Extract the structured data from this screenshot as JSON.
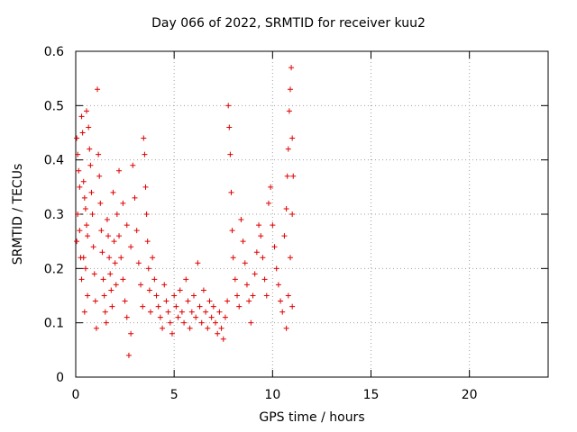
{
  "chart_data": {
    "type": "scatter",
    "title": "Day 066 of 2022, SRMTID for receiver kuu2",
    "xlabel": "GPS time / hours",
    "ylabel": "SRMTID / TECUs",
    "xlim": [
      0,
      24
    ],
    "ylim": [
      0,
      0.6
    ],
    "x_ticks": [
      0,
      5,
      10,
      15,
      20
    ],
    "y_ticks": [
      0,
      0.1,
      0.2,
      0.3,
      0.4,
      0.5,
      0.6
    ],
    "x_tick_labels": [
      "0",
      "5",
      "10",
      "15",
      "20"
    ],
    "y_tick_labels": [
      "0",
      "0.1",
      "0.2",
      "0.3",
      "0.4",
      "0.5",
      "0.6"
    ],
    "grid": true,
    "marker": "+",
    "color": "#e00000",
    "series": [
      {
        "name": "SRMTID",
        "points": [
          [
            0.05,
            0.44
          ],
          [
            0.1,
            0.41
          ],
          [
            0.15,
            0.38
          ],
          [
            0.2,
            0.35
          ],
          [
            0.1,
            0.3
          ],
          [
            0.2,
            0.27
          ],
          [
            0.05,
            0.25
          ],
          [
            0.25,
            0.22
          ],
          [
            0.3,
            0.48
          ],
          [
            0.35,
            0.45
          ],
          [
            0.4,
            0.36
          ],
          [
            0.45,
            0.33
          ],
          [
            0.5,
            0.31
          ],
          [
            0.55,
            0.28
          ],
          [
            0.6,
            0.26
          ],
          [
            0.4,
            0.22
          ],
          [
            0.5,
            0.2
          ],
          [
            0.3,
            0.18
          ],
          [
            0.6,
            0.15
          ],
          [
            0.45,
            0.12
          ],
          [
            0.55,
            0.49
          ],
          [
            0.65,
            0.46
          ],
          [
            0.7,
            0.42
          ],
          [
            0.75,
            0.39
          ],
          [
            0.8,
            0.34
          ],
          [
            0.85,
            0.3
          ],
          [
            0.9,
            0.24
          ],
          [
            0.95,
            0.19
          ],
          [
            1.0,
            0.14
          ],
          [
            1.05,
            0.09
          ],
          [
            1.1,
            0.53
          ],
          [
            1.15,
            0.41
          ],
          [
            1.2,
            0.37
          ],
          [
            1.25,
            0.32
          ],
          [
            1.3,
            0.27
          ],
          [
            1.35,
            0.23
          ],
          [
            1.4,
            0.18
          ],
          [
            1.45,
            0.15
          ],
          [
            1.5,
            0.12
          ],
          [
            1.55,
            0.1
          ],
          [
            1.6,
            0.29
          ],
          [
            1.65,
            0.26
          ],
          [
            1.7,
            0.22
          ],
          [
            1.75,
            0.19
          ],
          [
            1.8,
            0.16
          ],
          [
            1.85,
            0.13
          ],
          [
            1.9,
            0.34
          ],
          [
            1.95,
            0.25
          ],
          [
            2.0,
            0.21
          ],
          [
            2.05,
            0.17
          ],
          [
            2.1,
            0.3
          ],
          [
            2.2,
            0.26
          ],
          [
            2.3,
            0.22
          ],
          [
            2.4,
            0.18
          ],
          [
            2.5,
            0.14
          ],
          [
            2.6,
            0.11
          ],
          [
            2.2,
            0.38
          ],
          [
            2.4,
            0.32
          ],
          [
            2.6,
            0.28
          ],
          [
            2.8,
            0.24
          ],
          [
            2.7,
            0.04
          ],
          [
            2.8,
            0.08
          ],
          [
            2.9,
            0.39
          ],
          [
            3.0,
            0.33
          ],
          [
            3.1,
            0.27
          ],
          [
            3.2,
            0.21
          ],
          [
            3.3,
            0.17
          ],
          [
            3.4,
            0.13
          ],
          [
            3.45,
            0.44
          ],
          [
            3.5,
            0.41
          ],
          [
            3.55,
            0.35
          ],
          [
            3.6,
            0.3
          ],
          [
            3.65,
            0.25
          ],
          [
            3.7,
            0.2
          ],
          [
            3.75,
            0.16
          ],
          [
            3.8,
            0.12
          ],
          [
            3.9,
            0.22
          ],
          [
            4.0,
            0.18
          ],
          [
            4.1,
            0.15
          ],
          [
            4.2,
            0.13
          ],
          [
            4.3,
            0.11
          ],
          [
            4.4,
            0.09
          ],
          [
            4.5,
            0.17
          ],
          [
            4.6,
            0.14
          ],
          [
            4.7,
            0.12
          ],
          [
            4.8,
            0.1
          ],
          [
            4.9,
            0.08
          ],
          [
            5.0,
            0.15
          ],
          [
            5.1,
            0.13
          ],
          [
            5.2,
            0.11
          ],
          [
            5.3,
            0.16
          ],
          [
            5.4,
            0.12
          ],
          [
            5.5,
            0.1
          ],
          [
            5.6,
            0.18
          ],
          [
            5.7,
            0.14
          ],
          [
            5.8,
            0.09
          ],
          [
            5.9,
            0.12
          ],
          [
            6.0,
            0.15
          ],
          [
            6.1,
            0.11
          ],
          [
            6.2,
            0.21
          ],
          [
            6.3,
            0.13
          ],
          [
            6.4,
            0.1
          ],
          [
            6.5,
            0.16
          ],
          [
            6.6,
            0.12
          ],
          [
            6.7,
            0.09
          ],
          [
            6.8,
            0.14
          ],
          [
            6.9,
            0.11
          ],
          [
            7.0,
            0.13
          ],
          [
            7.1,
            0.1
          ],
          [
            7.2,
            0.08
          ],
          [
            7.3,
            0.12
          ],
          [
            7.4,
            0.09
          ],
          [
            7.5,
            0.07
          ],
          [
            7.6,
            0.11
          ],
          [
            7.7,
            0.14
          ],
          [
            7.75,
            0.5
          ],
          [
            7.8,
            0.46
          ],
          [
            7.85,
            0.41
          ],
          [
            7.9,
            0.34
          ],
          [
            7.95,
            0.27
          ],
          [
            8.0,
            0.22
          ],
          [
            8.1,
            0.18
          ],
          [
            8.2,
            0.15
          ],
          [
            8.3,
            0.13
          ],
          [
            8.4,
            0.29
          ],
          [
            8.5,
            0.25
          ],
          [
            8.6,
            0.21
          ],
          [
            8.7,
            0.17
          ],
          [
            8.8,
            0.14
          ],
          [
            8.9,
            0.1
          ],
          [
            9.0,
            0.15
          ],
          [
            9.1,
            0.19
          ],
          [
            9.2,
            0.23
          ],
          [
            9.3,
            0.28
          ],
          [
            9.4,
            0.26
          ],
          [
            9.5,
            0.22
          ],
          [
            9.6,
            0.18
          ],
          [
            9.7,
            0.15
          ],
          [
            9.8,
            0.32
          ],
          [
            9.9,
            0.35
          ],
          [
            10.0,
            0.28
          ],
          [
            10.1,
            0.24
          ],
          [
            10.2,
            0.2
          ],
          [
            10.3,
            0.17
          ],
          [
            10.4,
            0.14
          ],
          [
            10.5,
            0.12
          ],
          [
            10.6,
            0.26
          ],
          [
            10.7,
            0.31
          ],
          [
            10.75,
            0.37
          ],
          [
            10.8,
            0.42
          ],
          [
            10.85,
            0.49
          ],
          [
            10.9,
            0.53
          ],
          [
            10.95,
            0.57
          ],
          [
            11.0,
            0.44
          ],
          [
            11.05,
            0.37
          ],
          [
            11.0,
            0.3
          ],
          [
            10.9,
            0.22
          ],
          [
            10.8,
            0.15
          ],
          [
            10.7,
            0.09
          ],
          [
            11.0,
            0.13
          ]
        ]
      }
    ]
  }
}
